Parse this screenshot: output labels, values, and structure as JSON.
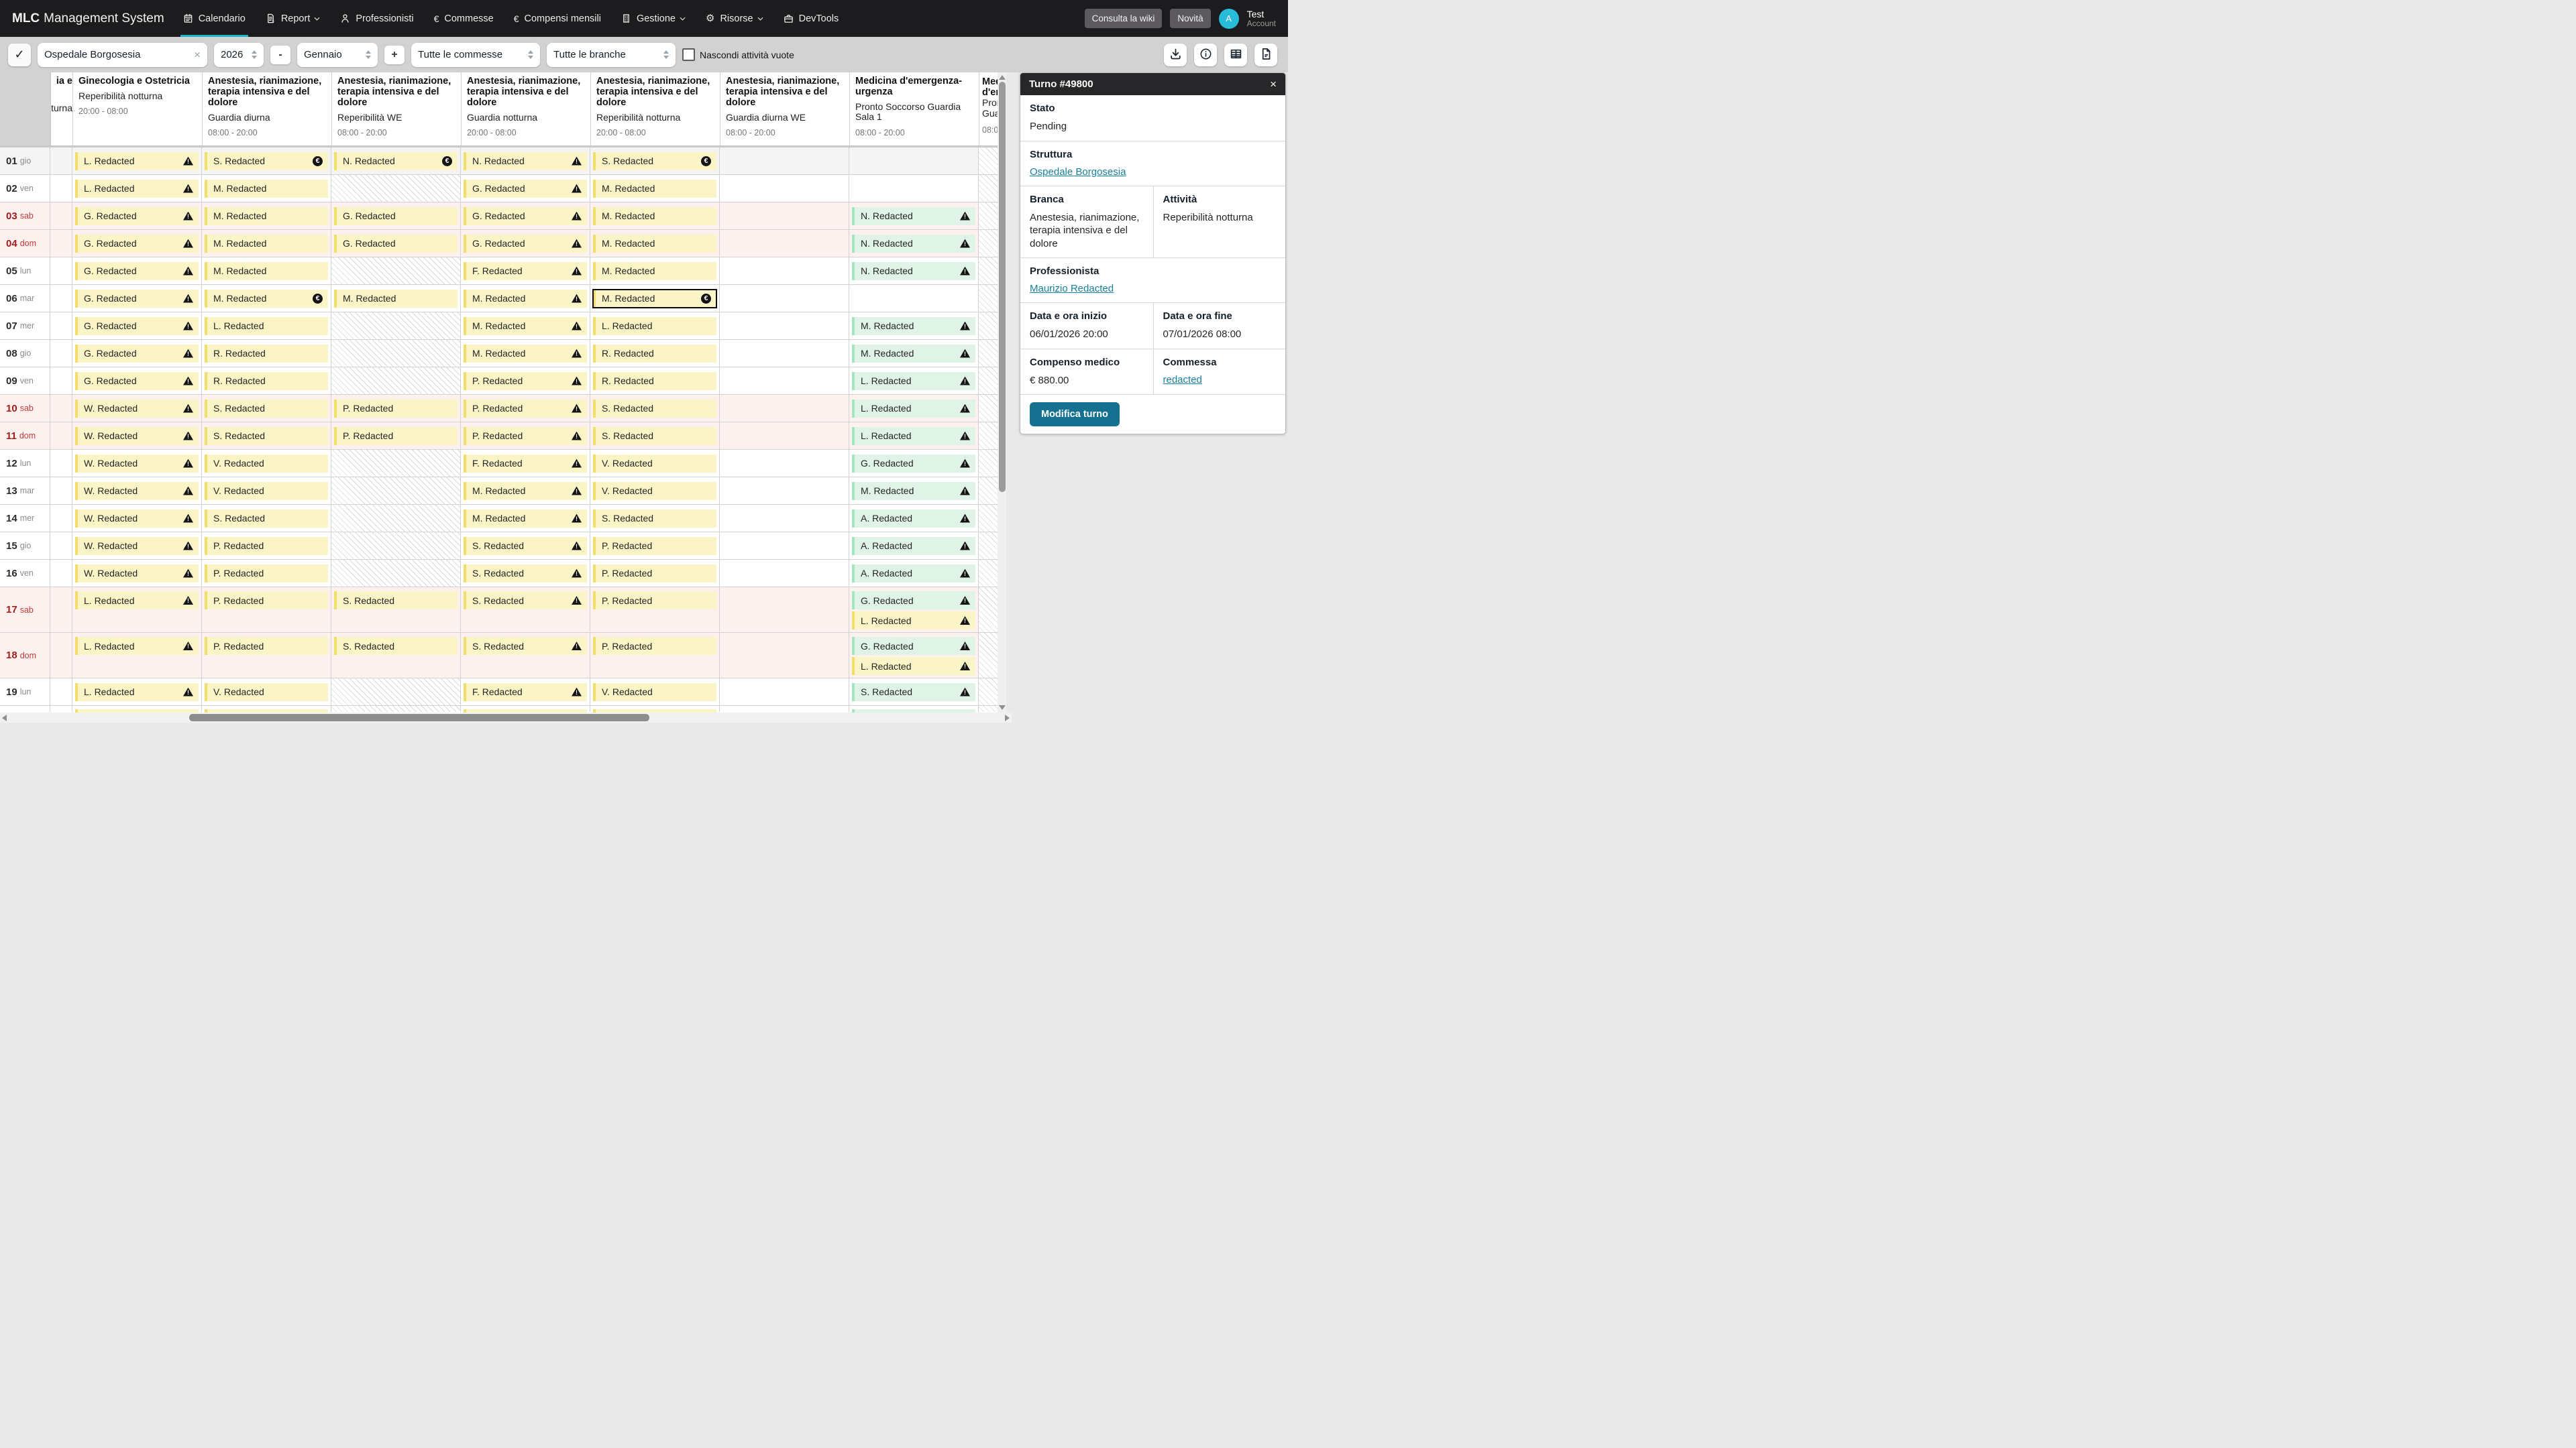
{
  "nav": {
    "brand_bold": "MLC",
    "brand_rest": "Management System",
    "items": [
      {
        "label": "Calendario",
        "icon": "calendar-icon",
        "active": true,
        "chevron": false
      },
      {
        "label": "Report",
        "icon": "report-icon",
        "active": false,
        "chevron": true
      },
      {
        "label": "Professionisti",
        "icon": "person-icon",
        "active": false,
        "chevron": false
      },
      {
        "label": "Commesse",
        "icon": "euro-icon",
        "active": false,
        "chevron": false
      },
      {
        "label": "Compensi mensili",
        "icon": "euro-icon",
        "active": false,
        "chevron": false
      },
      {
        "label": "Gestione",
        "icon": "building-icon",
        "active": false,
        "chevron": true
      },
      {
        "label": "Risorse",
        "icon": "gear-icon",
        "active": false,
        "chevron": true
      },
      {
        "label": "DevTools",
        "icon": "briefcase-icon",
        "active": false,
        "chevron": false
      }
    ],
    "wiki_button": "Consulta la wiki",
    "news_button": "Novità",
    "avatar_initial": "A",
    "user_name": "Test",
    "user_role": "Account"
  },
  "toolbar": {
    "check_icon": "✓",
    "facility_value": "Ospedale Borgosesia",
    "clear_icon": "×",
    "year_value": "2026",
    "minus_label": "-",
    "month_value": "Gennaio",
    "plus_label": "+",
    "commesse_value": "Tutte le commesse",
    "branche_value": "Tutte le branche",
    "hide_empty_label": "Nascondi attività vuote",
    "hide_empty_checked": false,
    "icon_buttons": [
      "download-icon",
      "info-icon",
      "table-icon",
      "document-icon"
    ]
  },
  "grid": {
    "partial_left_header": {
      "line1": "ia e",
      "line2": "tturna"
    },
    "columns": [
      {
        "title": "Ginecologia e Ostetricia",
        "subtitle": "Reperibilità notturna",
        "time": "20:00 - 08:00"
      },
      {
        "title": "Anestesia, rianimazione, terapia intensiva e del dolore",
        "subtitle": "Guardia diurna",
        "time": "08:00 - 20:00"
      },
      {
        "title": "Anestesia, rianimazione, terapia intensiva e del dolore",
        "subtitle": "Reperibilità WE",
        "time": "08:00 - 20:00"
      },
      {
        "title": "Anestesia, rianimazione, terapia intensiva e del dolore",
        "subtitle": "Guardia notturna",
        "time": "20:00 - 08:00"
      },
      {
        "title": "Anestesia, rianimazione, terapia intensiva e del dolore",
        "subtitle": "Reperibilità notturna",
        "time": "20:00 - 08:00"
      },
      {
        "title": "Anestesia, rianimazione, terapia intensiva e del dolore",
        "subtitle": "Guardia diurna WE",
        "time": "08:00 - 20:00"
      },
      {
        "title": "Medicina d'emergenza-urgenza",
        "subtitle": "Pronto Soccorso Guardia Sala 1",
        "time": "08:00 - 20:00"
      }
    ],
    "partial_right_header": {
      "bold_lines": [
        "Med",
        "d'em"
      ],
      "lines": [
        "Pron",
        "Guar"
      ],
      "time": "08:00"
    },
    "rows": [
      {
        "day": "01",
        "dow": "gio",
        "variant": "gray",
        "cells": [
          [
            {
              "t": "L. Redacted",
              "i": "warning"
            }
          ],
          [
            {
              "t": "S. Redacted",
              "i": "euro"
            }
          ],
          [
            {
              "t": "N. Redacted",
              "i": "euro"
            }
          ],
          [
            {
              "t": "N. Redacted",
              "i": "warning"
            }
          ],
          [
            {
              "t": "S. Redacted",
              "i": "euro"
            }
          ],
          [],
          []
        ]
      },
      {
        "day": "02",
        "dow": "ven",
        "variant": "",
        "cells": [
          [
            {
              "t": "L. Redacted",
              "i": "warning"
            }
          ],
          [
            {
              "t": "M. Redacted"
            }
          ],
          "hatch",
          [
            {
              "t": "G. Redacted",
              "i": "warning"
            }
          ],
          [
            {
              "t": "M. Redacted"
            }
          ],
          [],
          []
        ]
      },
      {
        "day": "03",
        "dow": "sab",
        "variant": "weekend",
        "cells": [
          [
            {
              "t": "G. Redacted",
              "i": "warning"
            }
          ],
          [
            {
              "t": "M. Redacted"
            }
          ],
          [
            {
              "t": "G. Redacted"
            }
          ],
          [
            {
              "t": "G. Redacted",
              "i": "warning"
            }
          ],
          [
            {
              "t": "M. Redacted"
            }
          ],
          [],
          [
            {
              "t": "N. Redacted",
              "i": "warning",
              "g": true
            }
          ]
        ]
      },
      {
        "day": "04",
        "dow": "dom",
        "variant": "weekend",
        "cells": [
          [
            {
              "t": "G. Redacted",
              "i": "warning"
            }
          ],
          [
            {
              "t": "M. Redacted"
            }
          ],
          [
            {
              "t": "G. Redacted"
            }
          ],
          [
            {
              "t": "G. Redacted",
              "i": "warning"
            }
          ],
          [
            {
              "t": "M. Redacted"
            }
          ],
          [],
          [
            {
              "t": "N. Redacted",
              "i": "warning",
              "g": true
            }
          ]
        ]
      },
      {
        "day": "05",
        "dow": "lun",
        "variant": "",
        "cells": [
          [
            {
              "t": "G. Redacted",
              "i": "warning"
            }
          ],
          [
            {
              "t": "M. Redacted"
            }
          ],
          "hatch",
          [
            {
              "t": "F. Redacted",
              "i": "warning"
            }
          ],
          [
            {
              "t": "M. Redacted"
            }
          ],
          [],
          [
            {
              "t": "N. Redacted",
              "i": "warning",
              "g": true
            }
          ]
        ]
      },
      {
        "day": "06",
        "dow": "mar",
        "variant": "",
        "cells": [
          [
            {
              "t": "G. Redacted",
              "i": "warning"
            }
          ],
          [
            {
              "t": "M. Redacted",
              "i": "euro"
            }
          ],
          [
            {
              "t": "M. Redacted"
            }
          ],
          [
            {
              "t": "M. Redacted",
              "i": "warning"
            }
          ],
          [
            {
              "t": "M. Redacted",
              "i": "euro",
              "sel": true
            }
          ],
          [],
          []
        ]
      },
      {
        "day": "07",
        "dow": "mer",
        "variant": "",
        "cells": [
          [
            {
              "t": "G. Redacted",
              "i": "warning"
            }
          ],
          [
            {
              "t": "L. Redacted"
            }
          ],
          "hatch",
          [
            {
              "t": "M. Redacted",
              "i": "warning"
            }
          ],
          [
            {
              "t": "L. Redacted"
            }
          ],
          [],
          [
            {
              "t": "M. Redacted",
              "i": "warning",
              "g": true
            }
          ]
        ]
      },
      {
        "day": "08",
        "dow": "gio",
        "variant": "",
        "cells": [
          [
            {
              "t": "G. Redacted",
              "i": "warning"
            }
          ],
          [
            {
              "t": "R. Redacted"
            }
          ],
          "hatch",
          [
            {
              "t": "M. Redacted",
              "i": "warning"
            }
          ],
          [
            {
              "t": "R. Redacted"
            }
          ],
          [],
          [
            {
              "t": "M. Redacted",
              "i": "warning",
              "g": true
            }
          ]
        ]
      },
      {
        "day": "09",
        "dow": "ven",
        "variant": "",
        "cells": [
          [
            {
              "t": "G. Redacted",
              "i": "warning"
            }
          ],
          [
            {
              "t": "R. Redacted"
            }
          ],
          "hatch",
          [
            {
              "t": "P. Redacted",
              "i": "warning"
            }
          ],
          [
            {
              "t": "R. Redacted"
            }
          ],
          [],
          [
            {
              "t": "L. Redacted",
              "i": "warning",
              "g": true
            }
          ]
        ]
      },
      {
        "day": "10",
        "dow": "sab",
        "variant": "weekend",
        "cells": [
          [
            {
              "t": "W. Redacted",
              "i": "warning"
            }
          ],
          [
            {
              "t": "S. Redacted"
            }
          ],
          [
            {
              "t": "P. Redacted"
            }
          ],
          [
            {
              "t": "P. Redacted",
              "i": "warning"
            }
          ],
          [
            {
              "t": "S. Redacted"
            }
          ],
          [],
          [
            {
              "t": "L. Redacted",
              "i": "warning",
              "g": true
            }
          ]
        ]
      },
      {
        "day": "11",
        "dow": "dom",
        "variant": "weekend",
        "cells": [
          [
            {
              "t": "W. Redacted",
              "i": "warning"
            }
          ],
          [
            {
              "t": "S. Redacted"
            }
          ],
          [
            {
              "t": "P. Redacted"
            }
          ],
          [
            {
              "t": "P. Redacted",
              "i": "warning"
            }
          ],
          [
            {
              "t": "S. Redacted"
            }
          ],
          [],
          [
            {
              "t": "L. Redacted",
              "i": "warning",
              "g": true
            }
          ]
        ]
      },
      {
        "day": "12",
        "dow": "lun",
        "variant": "",
        "cells": [
          [
            {
              "t": "W. Redacted",
              "i": "warning"
            }
          ],
          [
            {
              "t": "V. Redacted"
            }
          ],
          "hatch",
          [
            {
              "t": "F. Redacted",
              "i": "warning"
            }
          ],
          [
            {
              "t": "V. Redacted"
            }
          ],
          [],
          [
            {
              "t": "G. Redacted",
              "i": "warning",
              "g": true
            }
          ]
        ]
      },
      {
        "day": "13",
        "dow": "mar",
        "variant": "",
        "cells": [
          [
            {
              "t": "W. Redacted",
              "i": "warning"
            }
          ],
          [
            {
              "t": "V. Redacted"
            }
          ],
          "hatch",
          [
            {
              "t": "M. Redacted",
              "i": "warning"
            }
          ],
          [
            {
              "t": "V. Redacted"
            }
          ],
          [],
          [
            {
              "t": "M. Redacted",
              "i": "warning",
              "g": true
            }
          ]
        ]
      },
      {
        "day": "14",
        "dow": "mer",
        "variant": "",
        "cells": [
          [
            {
              "t": "W. Redacted",
              "i": "warning"
            }
          ],
          [
            {
              "t": "S. Redacted"
            }
          ],
          "hatch",
          [
            {
              "t": "M. Redacted",
              "i": "warning"
            }
          ],
          [
            {
              "t": "S. Redacted"
            }
          ],
          [],
          [
            {
              "t": "A. Redacted",
              "i": "warning",
              "g": true
            }
          ]
        ]
      },
      {
        "day": "15",
        "dow": "gio",
        "variant": "",
        "cells": [
          [
            {
              "t": "W. Redacted",
              "i": "warning"
            }
          ],
          [
            {
              "t": "P. Redacted"
            }
          ],
          "hatch",
          [
            {
              "t": "S. Redacted",
              "i": "warning"
            }
          ],
          [
            {
              "t": "P. Redacted"
            }
          ],
          [],
          [
            {
              "t": "A. Redacted",
              "i": "warning",
              "g": true
            }
          ]
        ]
      },
      {
        "day": "16",
        "dow": "ven",
        "variant": "",
        "cells": [
          [
            {
              "t": "W. Redacted",
              "i": "warning"
            }
          ],
          [
            {
              "t": "P. Redacted"
            }
          ],
          "hatch",
          [
            {
              "t": "S. Redacted",
              "i": "warning"
            }
          ],
          [
            {
              "t": "P. Redacted"
            }
          ],
          [],
          [
            {
              "t": "A. Redacted",
              "i": "warning",
              "g": true
            }
          ]
        ]
      },
      {
        "day": "17",
        "dow": "sab",
        "variant": "weekend tall",
        "cells": [
          [
            {
              "t": "L. Redacted",
              "i": "warning"
            }
          ],
          [
            {
              "t": "P. Redacted"
            }
          ],
          [
            {
              "t": "S. Redacted"
            }
          ],
          [
            {
              "t": "S. Redacted",
              "i": "warning"
            }
          ],
          [
            {
              "t": "P. Redacted"
            }
          ],
          [],
          [
            {
              "t": "G. Redacted",
              "i": "warning",
              "g": true
            },
            {
              "t": "L. Redacted",
              "i": "warning"
            }
          ]
        ]
      },
      {
        "day": "18",
        "dow": "dom",
        "variant": "weekend tall",
        "cells": [
          [
            {
              "t": "L. Redacted",
              "i": "warning"
            }
          ],
          [
            {
              "t": "P. Redacted"
            }
          ],
          [
            {
              "t": "S. Redacted"
            }
          ],
          [
            {
              "t": "S. Redacted",
              "i": "warning"
            }
          ],
          [
            {
              "t": "P. Redacted"
            }
          ],
          [],
          [
            {
              "t": "G. Redacted",
              "i": "warning",
              "g": true
            },
            {
              "t": "L. Redacted",
              "i": "warning"
            }
          ]
        ]
      },
      {
        "day": "19",
        "dow": "lun",
        "variant": "",
        "cells": [
          [
            {
              "t": "L. Redacted",
              "i": "warning"
            }
          ],
          [
            {
              "t": "V. Redacted"
            }
          ],
          "hatch",
          [
            {
              "t": "F. Redacted",
              "i": "warning"
            }
          ],
          [
            {
              "t": "V. Redacted"
            }
          ],
          [],
          [
            {
              "t": "S. Redacted",
              "i": "warning",
              "g": true
            }
          ]
        ]
      },
      {
        "day": "",
        "dow": "",
        "variant": "clip",
        "cells": [
          [
            {
              "t": ""
            }
          ],
          [
            {
              "t": ""
            }
          ],
          "hatch",
          [
            {
              "t": ""
            }
          ],
          [
            {
              "t": ""
            }
          ],
          [],
          [
            {
              "t": "",
              "g": true
            }
          ]
        ]
      }
    ]
  },
  "panel": {
    "title": "Turno #49800",
    "close_icon": "×",
    "stato_label": "Stato",
    "stato_value": "Pending",
    "struttura_label": "Struttura",
    "struttura_link": "Ospedale Borgosesia",
    "branca_label": "Branca",
    "branca_value": "Anestesia, rianimazione, terapia intensiva e del dolore",
    "attivita_label": "Attività",
    "attivita_value": "Reperibilità notturna",
    "professionista_label": "Professionista",
    "professionista_link": "Maurizio Redacted",
    "inizio_label": "Data e ora inizio",
    "inizio_value": "06/01/2026 20:00",
    "fine_label": "Data e ora fine",
    "fine_value": "07/01/2026 08:00",
    "compenso_label": "Compenso medico",
    "compenso_value": "€ 880.00",
    "commessa_label": "Commessa",
    "commessa_link": "redacted",
    "edit_button": "Modifica turno"
  },
  "colors": {
    "accent_link": "#17809c",
    "accent_button": "#15718f",
    "nav_active_underline": "#1cb5c9",
    "avatar": "#29bcd9",
    "chip_yellow_bg": "#fbf4c6",
    "chip_yellow_border": "#f2de6a",
    "chip_green_bg": "#dff3e6",
    "chip_green_border": "#a3e6bf",
    "weekend_row_bg": "#fdf1f0",
    "status_warning_icon": "#141414"
  },
  "icons_legend": {
    "warning-icon": "black triangle with exclamation mark",
    "euro-circle-icon": "€ in black filled circle"
  }
}
